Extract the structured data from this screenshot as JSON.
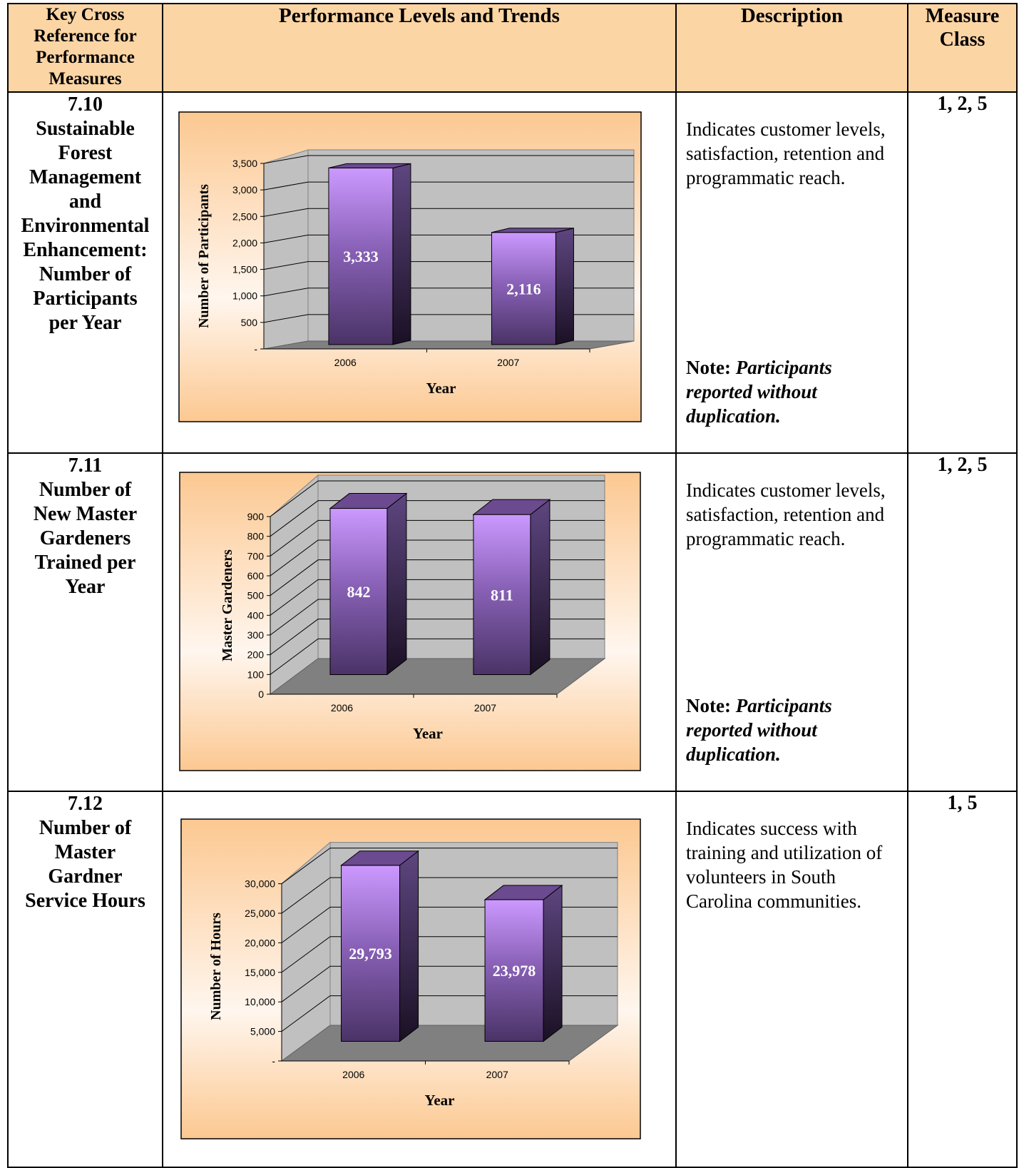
{
  "header": {
    "col1": "Key Cross Reference for Performance Measures",
    "col2": "Performance Levels and Trends",
    "col3": "Description",
    "col4": "Measure Class"
  },
  "rows": [
    {
      "ref_lines": [
        "7.10",
        "Sustainable",
        "Forest",
        "Management",
        "and",
        "Environmental",
        "Enhancement:",
        "Number of",
        "Participants",
        "per Year"
      ],
      "description": "Indicates customer levels, satisfaction, retention and programmatic reach.",
      "note_label": "Note:",
      "note_text": "Participants reported without duplication.",
      "measure_class": "1, 2, 5"
    },
    {
      "ref_lines": [
        "7.11",
        "Number of",
        "New Master",
        "Gardeners",
        "Trained per",
        "Year"
      ],
      "description": "Indicates customer levels, satisfaction, retention and programmatic reach.",
      "note_label": "Note:",
      "note_text": "Participants reported without duplication.",
      "measure_class": "1, 2, 5"
    },
    {
      "ref_lines": [
        "7.12",
        "Number of",
        "Master",
        "Gardner",
        "Service Hours"
      ],
      "description": "Indicates success with training and utilization of volunteers in South Carolina communities.",
      "measure_class": "1, 5"
    }
  ],
  "chart_data": [
    {
      "type": "bar",
      "categories": [
        "2006",
        "2007"
      ],
      "values": [
        3333,
        2116
      ],
      "data_labels": [
        "3,333",
        "2,116"
      ],
      "ticks": [
        "-",
        "500",
        "1,000",
        "1,500",
        "2,000",
        "2,500",
        "3,000",
        "3,500"
      ],
      "tick_values": [
        0,
        500,
        1000,
        1500,
        2000,
        2500,
        3000,
        3500
      ],
      "ylim": [
        0,
        3500
      ],
      "xlabel": "Year",
      "ylabel": "Number of Participants",
      "grid": true,
      "style": "3d"
    },
    {
      "type": "bar",
      "categories": [
        "2006",
        "2007"
      ],
      "values": [
        842,
        811
      ],
      "data_labels": [
        "842",
        "811"
      ],
      "ticks": [
        "0",
        "100",
        "200",
        "300",
        "400",
        "500",
        "600",
        "700",
        "800",
        "900"
      ],
      "tick_values": [
        0,
        100,
        200,
        300,
        400,
        500,
        600,
        700,
        800,
        900
      ],
      "ylim": [
        0,
        900
      ],
      "xlabel": "Year",
      "ylabel": "Master Gardeners",
      "grid": true,
      "style": "3d"
    },
    {
      "type": "bar",
      "categories": [
        "2006",
        "2007"
      ],
      "values": [
        29793,
        23978
      ],
      "data_labels": [
        "29,793",
        "23,978"
      ],
      "ticks": [
        "-",
        "5,000",
        "10,000",
        "15,000",
        "20,000",
        "25,000",
        "30,000"
      ],
      "tick_values": [
        0,
        5000,
        10000,
        15000,
        20000,
        25000,
        30000
      ],
      "ylim": [
        0,
        32000
      ],
      "xlabel": "Year",
      "ylabel": "Number of Hours",
      "grid": true,
      "style": "3d"
    }
  ],
  "colors": {
    "header_bg": "#fcd5a5",
    "bar_top": "#cc99ff",
    "bar_bottom": "#4a3366",
    "wall": "#c0c0c0",
    "floor": "#808080"
  }
}
